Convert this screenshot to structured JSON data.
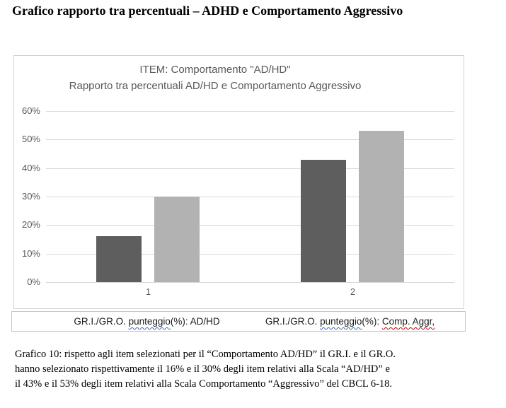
{
  "doc": {
    "title": "Grafico rapporto tra percentuali – ADHD e Comportamento Aggressivo"
  },
  "chart_data": {
    "type": "bar",
    "title_lines": [
      "ITEM: Comportamento \"AD/HD\"",
      "Rapporto tra percentuali AD/HD e Comportamento Aggressivo"
    ],
    "categories": [
      "1",
      "2"
    ],
    "series": [
      {
        "name": "GR.I.",
        "color": "#5e5e5e",
        "values": [
          16,
          43
        ]
      },
      {
        "name": "GR.O.",
        "color": "#b2b2b2",
        "values": [
          30,
          53
        ]
      }
    ],
    "ylim": [
      0,
      60
    ],
    "yticks": [
      "60%",
      "50%",
      "40%",
      "30%",
      "20%",
      "10%",
      "0%"
    ],
    "grid": true,
    "legend_position": "bottom",
    "category_meanings": [
      "Scala AD/HD",
      "Scala Comportamento Aggressivo"
    ]
  },
  "legend": {
    "items": [
      {
        "prefix": "GR.I./GR.O. ",
        "flagged": "punteggio",
        "suffix": "(%): AD/HD",
        "misspelled": ""
      },
      {
        "prefix": "GR.I./GR.O. ",
        "flagged": "punteggio",
        "suffix": "(%): ",
        "misspelled": "Comp. Aggr,"
      }
    ]
  },
  "caption": {
    "label": "Grafico 10:",
    "lines": [
      "Grafico 10: rispetto agli item selezionati per il “Comportamento AD/HD” il GR.I. e il GR.O.",
      "hanno selezionato rispettivamente il 16% e il 30% degli item relativi alla Scala “AD/HD” e",
      "il 43% e il 53% degli item relativi alla Scala Comportamento “Aggressivo” del CBCL 6-18."
    ]
  },
  "colors": {
    "series_dark": "#5e5e5e",
    "series_light": "#b2b2b2",
    "gridline": "#d9d9d9",
    "chart_text": "#595959",
    "frame_border": "#d2d2d2",
    "grammar_underline": "#3b6cb5",
    "spell_underline": "#cc0000"
  }
}
